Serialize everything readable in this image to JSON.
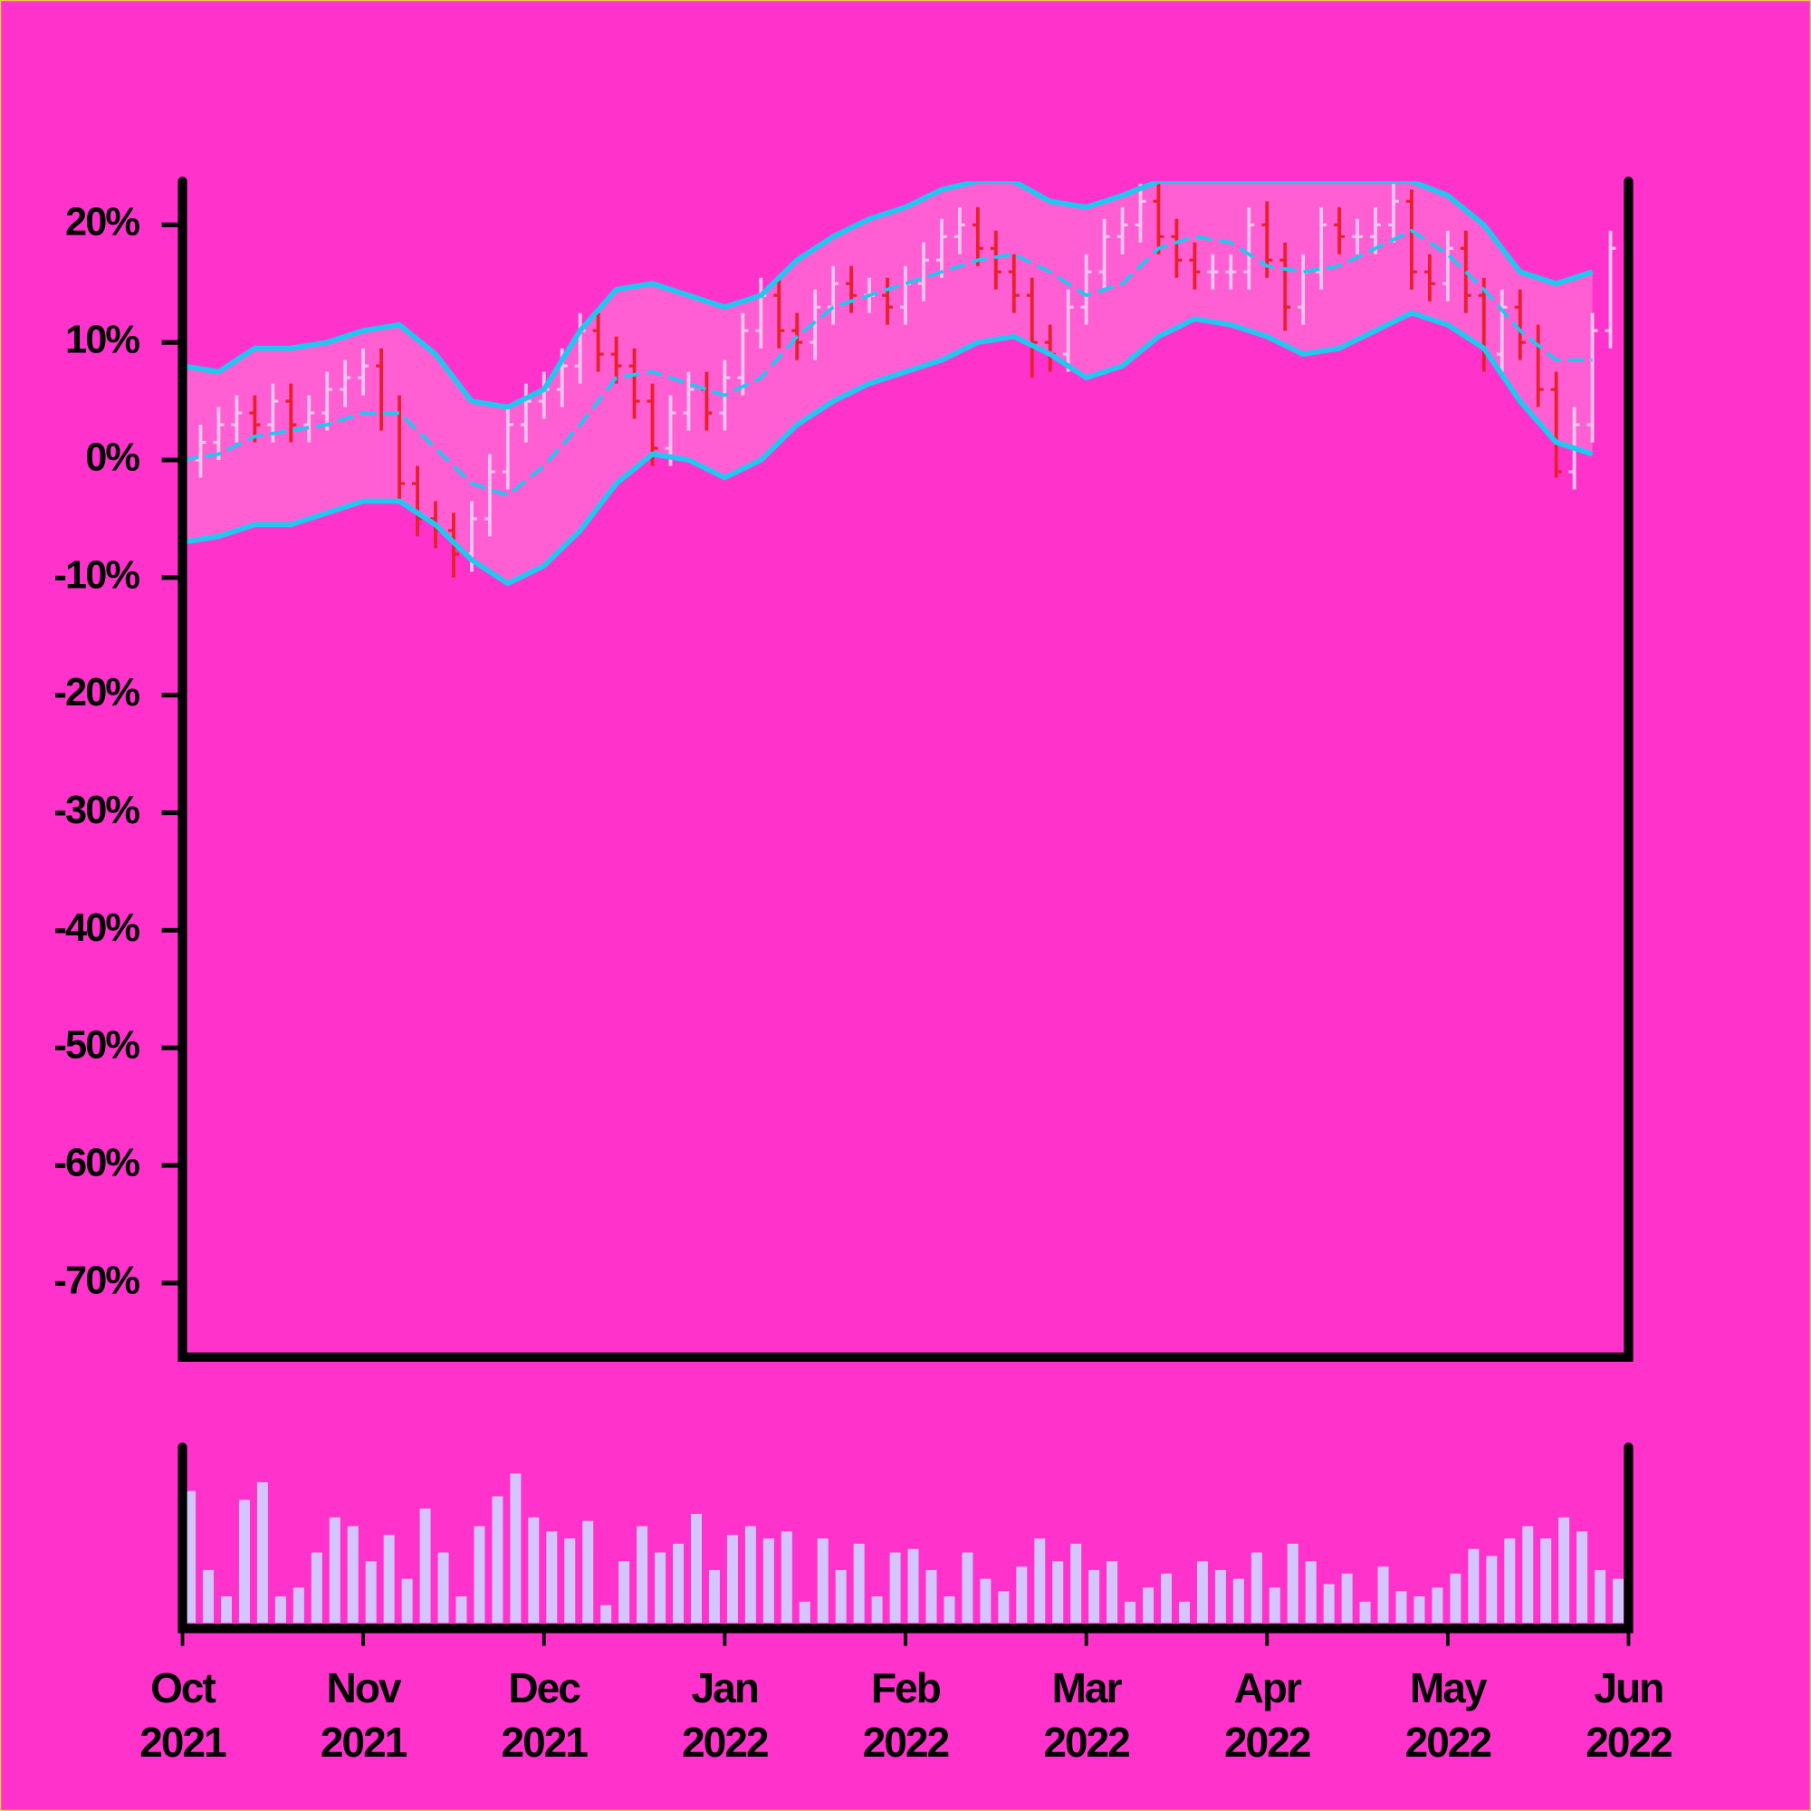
{
  "chart_data": [
    {
      "type": "ohlc",
      "x": [
        0,
        0.1,
        0.2,
        0.3,
        0.4,
        0.5,
        0.6,
        0.7,
        0.8,
        0.9,
        1,
        1.1,
        1.2,
        1.3,
        1.4,
        1.5,
        1.6,
        1.7,
        1.8,
        1.9,
        2,
        2.1,
        2.2,
        2.3,
        2.4,
        2.5,
        2.6,
        2.7,
        2.8,
        2.9,
        3,
        3.1,
        3.2,
        3.3,
        3.4,
        3.5,
        3.6,
        3.7,
        3.8,
        3.9,
        4,
        4.1,
        4.2,
        4.3,
        4.4,
        4.5,
        4.6,
        4.7,
        4.8,
        4.9,
        5,
        5.1,
        5.2,
        5.3,
        5.4,
        5.5,
        5.6,
        5.7,
        5.8,
        5.9,
        6,
        6.1,
        6.2,
        6.3,
        6.4,
        6.5,
        6.6,
        6.7,
        6.8,
        6.9,
        7,
        7.1,
        7.2,
        7.3,
        7.4,
        7.5,
        7.6,
        7.7,
        7.8,
        7.9
      ],
      "open": [
        -3,
        0,
        1.5,
        3,
        4,
        3,
        5,
        3,
        4,
        6,
        7,
        8,
        4,
        -2,
        -5,
        -6,
        -8,
        -5,
        -1,
        3,
        5,
        6,
        8,
        11,
        9,
        8,
        5,
        1,
        4,
        6,
        4,
        7,
        11,
        14,
        11,
        10,
        13,
        15,
        14,
        14,
        13,
        15,
        17,
        19,
        20,
        18,
        16,
        14,
        10,
        9,
        13,
        16,
        19,
        20,
        22,
        19,
        17,
        16,
        16,
        16,
        20,
        17,
        13,
        16,
        20,
        19,
        19,
        20,
        22,
        16,
        15,
        18,
        14,
        9,
        13,
        10,
        6,
        -1,
        3,
        11
      ],
      "high": [
        1.5,
        3,
        4.5,
        5.5,
        5.5,
        6.5,
        6.5,
        5.5,
        7.5,
        8.5,
        9.5,
        9.5,
        5.5,
        -0.5,
        -3.5,
        -4.5,
        -3.5,
        0.5,
        4.5,
        6.5,
        7.5,
        9.5,
        12.5,
        12.5,
        10.5,
        9.5,
        6.5,
        5.5,
        7.5,
        7.5,
        8.5,
        12.5,
        15.5,
        15.5,
        12.5,
        14.5,
        16.5,
        16.5,
        15.5,
        15.5,
        16.5,
        18.5,
        20.5,
        21.5,
        21.5,
        19.5,
        17.5,
        15.5,
        11.5,
        14.5,
        17.5,
        20.5,
        21.5,
        23.5,
        23.5,
        20.5,
        18.5,
        17.5,
        17.5,
        21.5,
        22,
        18.5,
        17.5,
        21.5,
        21.5,
        20.5,
        21.5,
        23.5,
        23,
        17.5,
        19.5,
        19.5,
        15.5,
        14.5,
        14.5,
        11.5,
        7.5,
        4.5,
        12.5,
        19.5
      ],
      "low": [
        -4.5,
        -1.5,
        0,
        1.5,
        1.5,
        1.5,
        1.5,
        1.5,
        2.5,
        4.5,
        5.5,
        2.5,
        -3.5,
        -6.5,
        -7.5,
        -10,
        -9.5,
        -6.5,
        -2.5,
        1.5,
        3.5,
        4.5,
        6.5,
        7.5,
        6.5,
        3.5,
        -0.5,
        -0.5,
        2.5,
        2.5,
        2.5,
        5.5,
        9.5,
        9.5,
        8.5,
        8.5,
        11.5,
        12.5,
        12.5,
        11.5,
        11.5,
        13.5,
        15.5,
        17.5,
        16.5,
        14.5,
        12.5,
        7,
        7.5,
        7.5,
        11.5,
        14.5,
        17.5,
        18.5,
        17.5,
        15.5,
        14.5,
        14.5,
        14.5,
        14.5,
        15.5,
        11,
        11.5,
        14.5,
        17.5,
        17.5,
        17.5,
        18.5,
        14.5,
        13.5,
        13.5,
        12.5,
        7.5,
        7.5,
        8.5,
        4.5,
        -1.5,
        -2.5,
        1.5,
        9.5
      ],
      "close": [
        0,
        1.5,
        3,
        4,
        3,
        5,
        3,
        4,
        6,
        7,
        8,
        4,
        -2,
        -5,
        -6,
        -8,
        -5,
        -1,
        3,
        5,
        6,
        8,
        11,
        9,
        8,
        5,
        1,
        4,
        6,
        4,
        7,
        11,
        14,
        11,
        10,
        13,
        15,
        14,
        14,
        13,
        15,
        17,
        19,
        20,
        18,
        16,
        14,
        10,
        9,
        13,
        16,
        19,
        20,
        22,
        19,
        17,
        16,
        16,
        16,
        20,
        17,
        13,
        16,
        20,
        19,
        19,
        20,
        22,
        16,
        15,
        18,
        14,
        9,
        13,
        10,
        6,
        -1,
        3,
        11,
        18
      ],
      "up_color": "#f0c4ee",
      "down_color": "#e8202a",
      "bands": {
        "x": [
          0,
          0.2,
          0.4,
          0.6,
          0.8,
          1,
          1.2,
          1.4,
          1.6,
          1.8,
          2,
          2.2,
          2.4,
          2.6,
          2.8,
          3,
          3.2,
          3.4,
          3.6,
          3.8,
          4,
          4.2,
          4.4,
          4.6,
          4.8,
          5,
          5.2,
          5.4,
          5.6,
          5.8,
          6,
          6.2,
          6.4,
          6.6,
          6.8,
          7,
          7.2,
          7.4,
          7.6,
          7.8
        ],
        "upper": [
          8,
          7.5,
          9.5,
          9.5,
          10,
          11,
          11.5,
          9,
          5,
          4.5,
          6,
          11,
          14.5,
          15,
          14,
          13,
          14,
          17,
          19,
          20.5,
          21.5,
          23,
          23.7,
          23.7,
          22,
          21.5,
          22.5,
          23.7,
          23.7,
          23.7,
          23.7,
          23.7,
          23.7,
          23.7,
          23.7,
          22.5,
          20,
          16,
          15,
          16
        ],
        "middle": [
          0,
          0.5,
          2,
          2.5,
          3,
          4,
          4,
          1,
          -2,
          -3,
          -0.5,
          3,
          7,
          7.5,
          6.5,
          5.5,
          7,
          10.5,
          13,
          14,
          15,
          16,
          17,
          17.5,
          16,
          14,
          15,
          18,
          19,
          18.5,
          16.5,
          16,
          16.5,
          18,
          19.5,
          17.5,
          14.5,
          11,
          8.5,
          8.5
        ],
        "lower": [
          -7,
          -6.5,
          -5.5,
          -5.5,
          -4.5,
          -3.5,
          -3.5,
          -5.5,
          -8.5,
          -10.5,
          -9,
          -6,
          -2,
          0.5,
          0,
          -1.5,
          0,
          3,
          5,
          6.5,
          7.5,
          8.5,
          10,
          10.5,
          9,
          7,
          8,
          10.5,
          12,
          11.5,
          10.5,
          9,
          9.5,
          11,
          12.5,
          11.5,
          9.5,
          5,
          1.5,
          0.5
        ],
        "color": "#1ec8f0",
        "fill": "#ff5fd2"
      },
      "xlim": [
        0,
        8
      ],
      "ylim": [
        -76.3,
        23.7
      ],
      "yticks": [
        {
          "value": 20,
          "label": "20%"
        },
        {
          "value": 10,
          "label": "10%"
        },
        {
          "value": 0,
          "label": "0%"
        },
        {
          "value": -10,
          "label": "-10%"
        },
        {
          "value": -20,
          "label": "-20%"
        },
        {
          "value": -30,
          "label": "-30%"
        },
        {
          "value": -40,
          "label": "-40%"
        },
        {
          "value": -50,
          "label": "-50%"
        },
        {
          "value": -60,
          "label": "-60%"
        },
        {
          "value": -70,
          "label": "-70%"
        }
      ]
    },
    {
      "type": "bar",
      "x": [
        0,
        0.1,
        0.2,
        0.3,
        0.4,
        0.5,
        0.6,
        0.7,
        0.8,
        0.9,
        1,
        1.1,
        1.2,
        1.3,
        1.4,
        1.5,
        1.6,
        1.7,
        1.8,
        1.9,
        2,
        2.1,
        2.2,
        2.3,
        2.4,
        2.5,
        2.6,
        2.7,
        2.8,
        2.9,
        3,
        3.1,
        3.2,
        3.3,
        3.4,
        3.5,
        3.6,
        3.7,
        3.8,
        3.9,
        4,
        4.1,
        4.2,
        4.3,
        4.4,
        4.5,
        4.6,
        4.7,
        4.8,
        4.9,
        5,
        5.1,
        5.2,
        5.3,
        5.4,
        5.5,
        5.6,
        5.7,
        5.8,
        5.9,
        6,
        6.1,
        6.2,
        6.3,
        6.4,
        6.5,
        6.6,
        6.7,
        6.8,
        6.9,
        7,
        7.1,
        7.2,
        7.3,
        7.4,
        7.5,
        7.6,
        7.7,
        7.8,
        7.9
      ],
      "values": [
        75,
        30,
        15,
        70,
        80,
        15,
        20,
        40,
        60,
        55,
        35,
        50,
        25,
        65,
        40,
        15,
        55,
        72,
        85,
        60,
        52,
        48,
        58,
        10,
        35,
        55,
        40,
        45,
        62,
        30,
        50,
        55,
        48,
        52,
        12,
        48,
        30,
        45,
        15,
        40,
        42,
        30,
        15,
        40,
        25,
        18,
        32,
        48,
        35,
        45,
        30,
        35,
        12,
        20,
        28,
        12,
        35,
        30,
        25,
        40,
        20,
        45,
        35,
        22,
        28,
        12,
        32,
        18,
        15,
        20,
        28,
        42,
        38,
        48,
        55,
        48,
        60,
        52,
        30,
        25
      ],
      "color": "#d4c4ff",
      "xlim": [
        0,
        8
      ],
      "ylim": [
        0,
        100
      ],
      "xticks": [
        {
          "value": 0,
          "label": "Oct\n2021"
        },
        {
          "value": 1,
          "label": "Nov\n2021"
        },
        {
          "value": 2,
          "label": "Dec\n2021"
        },
        {
          "value": 3,
          "label": "Jan\n2022"
        },
        {
          "value": 4,
          "label": "Feb\n2022"
        },
        {
          "value": 5,
          "label": "Mar\n2022"
        },
        {
          "value": 6,
          "label": "Apr\n2022"
        },
        {
          "value": 7,
          "label": "May\n2022"
        },
        {
          "value": 8,
          "label": "Jun\n2022"
        }
      ]
    }
  ]
}
